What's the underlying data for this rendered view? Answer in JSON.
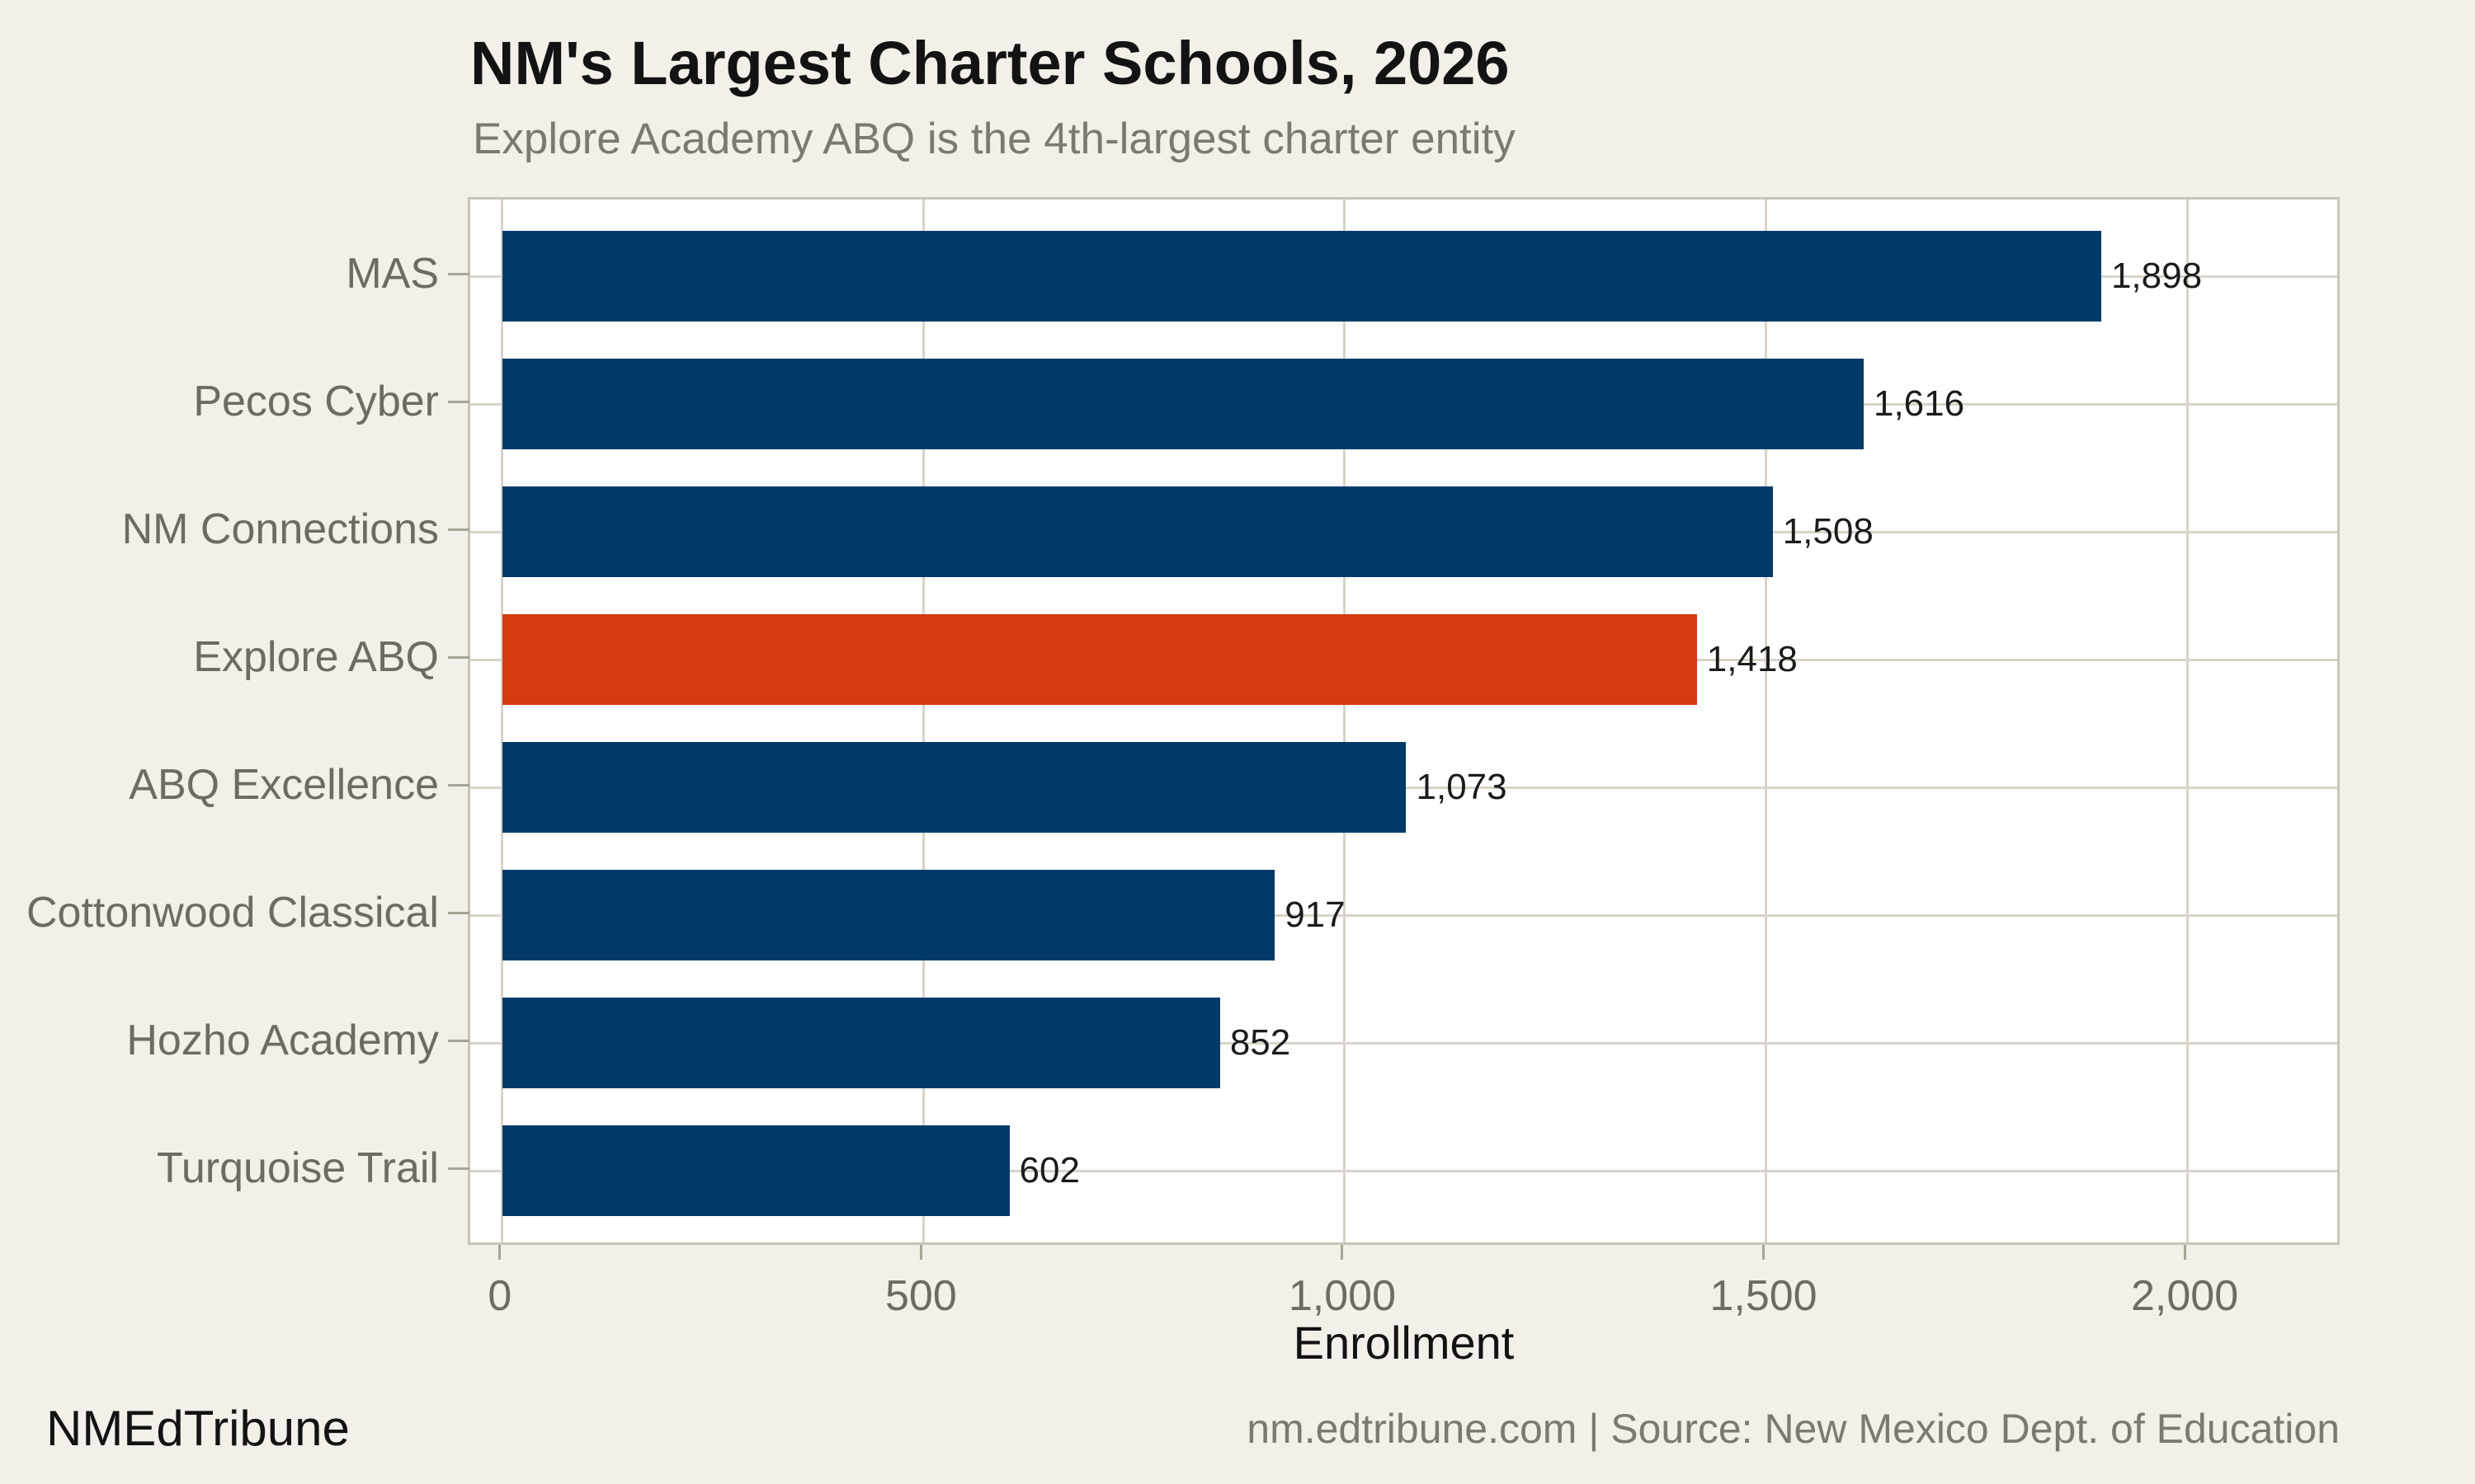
{
  "footer": {
    "left": "NMEdTribune",
    "right": "nm.edtribune.com | Source: New Mexico Dept. of Education"
  },
  "chart_data": {
    "type": "bar",
    "orientation": "horizontal",
    "title": "NM's Largest Charter Schools, 2026",
    "subtitle": "Explore Academy ABQ is the 4th-largest charter entity",
    "xlabel": "Enrollment",
    "categories": [
      "MAS",
      "Pecos Cyber",
      "NM Connections",
      "Explore ABQ",
      "ABQ Excellence",
      "Cottonwood Classical",
      "Hozho Academy",
      "Turquoise Trail"
    ],
    "values": [
      1898,
      1616,
      1508,
      1418,
      1073,
      917,
      852,
      602
    ],
    "value_labels": [
      "1,898",
      "1,616",
      "1,508",
      "1,418",
      "1,073",
      "917",
      "852",
      "602"
    ],
    "highlight_category": "Explore ABQ",
    "highlight_index": 3,
    "xlim": [
      -38,
      2184
    ],
    "x_ticks": [
      0,
      500,
      1000,
      1500,
      2000
    ],
    "x_tick_labels": [
      "0",
      "500",
      "1,000",
      "1,500",
      "2,000"
    ],
    "grid": "on",
    "legend": "none",
    "colors": {
      "bar": "#003a69",
      "highlight": "#d43b10",
      "background": "#f3efe9",
      "panel": "#ffffff",
      "grid": "#d9d3c9",
      "tick": "#aaa396",
      "axis_text": "#6f6b64",
      "value_text": "#1b1b1b",
      "title_text": "#131313",
      "subtitle_text": "#7d7972"
    }
  }
}
